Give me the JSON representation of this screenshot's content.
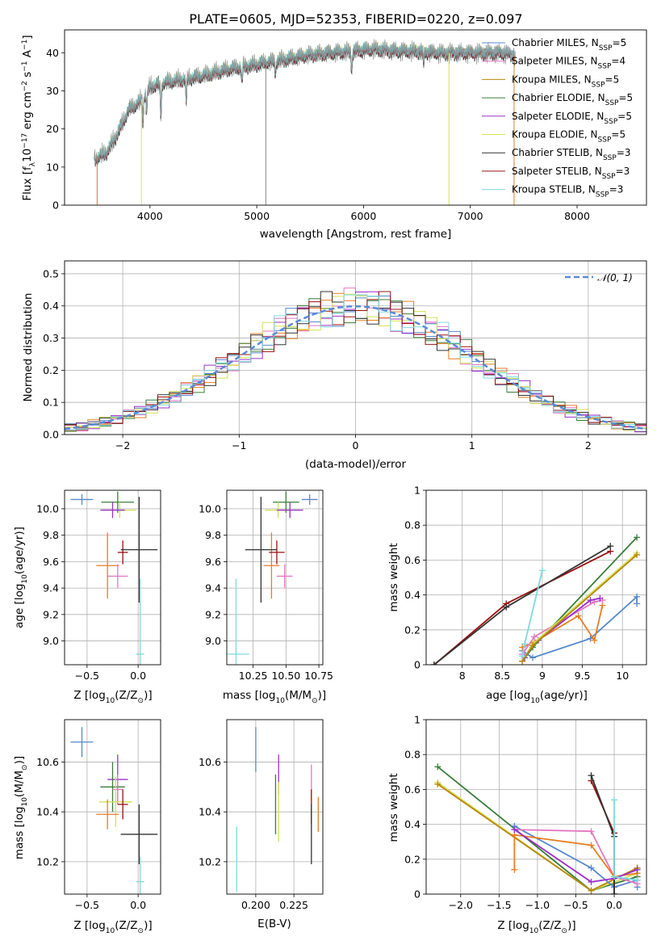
{
  "chart_data": [
    {
      "id": "spectrum",
      "type": "line",
      "title": "PLATE=0605, MJD=52353, FIBERID=0220, z=0.097",
      "xlabel": "wavelength [Angstrom, rest frame]",
      "ylabel": "Flux [f_λ10^-17 erg cm^-2 s^-1 A^-1]",
      "xlim": [
        3200,
        8650
      ],
      "ylim": [
        0,
        46
      ],
      "xticks": [
        4000,
        5000,
        6000,
        7000,
        8000
      ],
      "yticks": [
        0,
        10,
        20,
        30,
        40
      ],
      "continuum": {
        "x": [
          3480,
          3600,
          3700,
          3800,
          3900,
          4000,
          4100,
          4300,
          4500,
          4700,
          4900,
          5100,
          5300,
          5500,
          5700,
          5900,
          6100,
          6300,
          6500,
          6700,
          6900,
          7100,
          7300,
          7420
        ],
        "y": [
          12,
          14,
          19,
          25,
          27,
          31,
          32,
          33,
          34,
          35.5,
          36.5,
          37.5,
          38.5,
          39.5,
          40,
          40.5,
          41,
          40.5,
          40.5,
          40,
          40,
          40,
          40,
          39.5
        ]
      },
      "absorption_lines": [
        {
          "x": 3934,
          "depth": 6
        },
        {
          "x": 3969,
          "depth": 5
        },
        {
          "x": 4102,
          "depth": 8
        },
        {
          "x": 4340,
          "depth": 6
        },
        {
          "x": 4861,
          "depth": 4
        },
        {
          "x": 5175,
          "depth": 3
        },
        {
          "x": 5890,
          "depth": 5
        },
        {
          "x": 6563,
          "depth": 3
        }
      ],
      "series": [
        {
          "name": "Chabrier MILES, N_SSP=5",
          "color": "#5588cc"
        },
        {
          "name": "Salpeter MILES, N_SSP=4",
          "color": "#e377c2"
        },
        {
          "name": "Kroupa MILES, N_SSP=5",
          "color": "#b8860b"
        },
        {
          "name": "Chabrier ELODIE, N_SSP=5",
          "color": "#3a7d3a"
        },
        {
          "name": "Salpeter ELODIE, N_SSP=5",
          "color": "#9b30c8"
        },
        {
          "name": "Kroupa ELODIE, N_SSP=5",
          "color": "#d4e157"
        },
        {
          "name": "Chabrier STELIB, N_SSP=3",
          "color": "#333333"
        },
        {
          "name": "Salpeter STELIB, N_SSP=3",
          "color": "#9b1010"
        },
        {
          "name": "Kroupa STELIB, N_SSP=3",
          "color": "#7fd8e0"
        }
      ],
      "data_color": "#888888",
      "legend": [
        {
          "pre": "Chabrier MILES, N",
          "sub": "SSP",
          "post": "=5",
          "color": "#5588cc"
        },
        {
          "pre": "Salpeter MILES, N",
          "sub": "SSP",
          "post": "=4",
          "color": "#e377c2"
        },
        {
          "pre": "Kroupa MILES, N",
          "sub": "SSP",
          "post": "=5",
          "color": "#b8860b"
        },
        {
          "pre": "Chabrier ELODIE, N",
          "sub": "SSP",
          "post": "=5",
          "color": "#3a7d3a"
        },
        {
          "pre": "Salpeter ELODIE, N",
          "sub": "SSP",
          "post": "=5",
          "color": "#9b30c8"
        },
        {
          "pre": "Kroupa ELODIE, N",
          "sub": "SSP",
          "post": "=5",
          "color": "#d4e157"
        },
        {
          "pre": "Chabrier STELIB, N",
          "sub": "SSP",
          "post": "=3",
          "color": "#333333"
        },
        {
          "pre": "Salpeter STELIB, N",
          "sub": "SSP",
          "post": "=3",
          "color": "#9b1010"
        },
        {
          "pre": "Kroupa STELIB, N",
          "sub": "SSP",
          "post": "=3",
          "color": "#7fd8e0"
        }
      ]
    },
    {
      "id": "residuals",
      "type": "histogram",
      "xlabel": "(data-model)/error",
      "ylabel": "Normed distribution",
      "xlim": [
        -2.5,
        2.5
      ],
      "ylim": [
        0,
        0.54
      ],
      "xticks": [
        -2,
        -1,
        0,
        1,
        2
      ],
      "xtick_labels": [
        "−2",
        "−1",
        "0",
        "1",
        "2"
      ],
      "yticks": [
        0.0,
        0.1,
        0.2,
        0.3,
        0.4,
        0.5
      ],
      "ytick_labels": [
        "0.0",
        "0.1",
        "0.2",
        "0.3",
        "0.4",
        "0.5"
      ],
      "bin_width": 0.1,
      "legend_label": "𝒩(0, 1)",
      "gaussian_color": "#5b8ad6",
      "grid": true
    },
    {
      "id": "age_vs_Z",
      "type": "errorbar",
      "xlabel": "Z [log10(Z/Z⊙)]",
      "ylabel": "age  [log10(age/yr)]",
      "xlim": [
        -0.72,
        0.22
      ],
      "ylim": [
        8.82,
        10.14
      ],
      "xticks": [
        -0.5,
        0.0
      ],
      "xtick_labels": [
        "−0.5",
        "0.0"
      ],
      "yticks": [
        9.0,
        9.2,
        9.4,
        9.6,
        9.8,
        10.0
      ],
      "points": [
        {
          "x": -0.55,
          "xerr": 0.11,
          "y": 10.07,
          "yerr": 0.04,
          "color": "#5588cc"
        },
        {
          "x": -0.2,
          "xerr": 0.16,
          "y": 10.05,
          "yerr": 0.08,
          "color": "#3a7d3a"
        },
        {
          "x": -0.18,
          "xerr": 0.16,
          "y": 9.99,
          "yerr": 0.06,
          "color": "#d4e157"
        },
        {
          "x": -0.25,
          "xerr": 0.12,
          "y": 9.99,
          "yerr": 0.06,
          "color": "#9b30c8"
        },
        {
          "x": -0.3,
          "xerr": 0.11,
          "y": 9.57,
          "yerr": 0.25,
          "color": "#e67e22"
        },
        {
          "x": -0.2,
          "xerr": 0.1,
          "y": 9.49,
          "yerr": 0.09,
          "color": "#e377c2"
        },
        {
          "x": -0.15,
          "xerr": 0.05,
          "y": 9.67,
          "yerr": 0.09,
          "color": "#9b1010"
        },
        {
          "x": 0.01,
          "xerr": 0.18,
          "y": 9.69,
          "yerr": 0.4,
          "color": "#333333"
        },
        {
          "x": 0.02,
          "xerr": 0.04,
          "y": 8.9,
          "yerr": 0.57,
          "color": "#7fd8e0"
        }
      ]
    },
    {
      "id": "age_vs_mass",
      "type": "errorbar",
      "xlabel": "mass [log10(M/M⊙)]",
      "xlim": [
        10.05,
        10.78
      ],
      "ylim": [
        8.82,
        10.14
      ],
      "xticks": [
        10.25,
        10.5,
        10.75
      ],
      "xtick_labels": [
        "10.25",
        "10.50",
        "10.75"
      ],
      "yticks": [
        9.0,
        9.2,
        9.4,
        9.6,
        9.8,
        10.0
      ],
      "points": [
        {
          "x": 10.68,
          "xerr": 0.06,
          "y": 10.07,
          "yerr": 0.04,
          "color": "#5588cc"
        },
        {
          "x": 10.5,
          "xerr": 0.1,
          "y": 10.05,
          "yerr": 0.08,
          "color": "#3a7d3a"
        },
        {
          "x": 10.44,
          "xerr": 0.1,
          "y": 9.99,
          "yerr": 0.06,
          "color": "#d4e157"
        },
        {
          "x": 10.53,
          "xerr": 0.1,
          "y": 9.99,
          "yerr": 0.06,
          "color": "#9b30c8"
        },
        {
          "x": 10.39,
          "xerr": 0.06,
          "y": 9.57,
          "yerr": 0.25,
          "color": "#e67e22"
        },
        {
          "x": 10.49,
          "xerr": 0.06,
          "y": 9.49,
          "yerr": 0.09,
          "color": "#e377c2"
        },
        {
          "x": 10.43,
          "xerr": 0.06,
          "y": 9.67,
          "yerr": 0.09,
          "color": "#9b1010"
        },
        {
          "x": 10.31,
          "xerr": 0.12,
          "y": 9.69,
          "yerr": 0.4,
          "color": "#333333"
        },
        {
          "x": 10.12,
          "xerr": 0.1,
          "y": 8.9,
          "yerr": 0.57,
          "color": "#7fd8e0"
        }
      ]
    },
    {
      "id": "mass_weight_vs_age",
      "type": "line",
      "xlabel": "age  [log10(age/yr)]",
      "ylabel": "mass weight",
      "xlim": [
        7.55,
        10.3
      ],
      "ylim": [
        0.0,
        1.0
      ],
      "xticks": [
        8.0,
        8.5,
        9.0,
        9.5,
        10.0
      ],
      "yticks": [
        0.0,
        0.2,
        0.4,
        0.6,
        0.8,
        1.0
      ],
      "series": [
        {
          "color": "#5588cc",
          "x": [
            8.75,
            8.88,
            9.6,
            10.18,
            10.18
          ],
          "y": [
            0.08,
            0.04,
            0.15,
            0.39,
            0.35
          ]
        },
        {
          "color": "#e67e22",
          "x": [
            8.75,
            8.9,
            9.45,
            9.65,
            9.75
          ],
          "y": [
            0.1,
            0.13,
            0.28,
            0.14,
            0.34
          ]
        },
        {
          "color": "#e377c2",
          "x": [
            8.75,
            8.9,
            9.65,
            9.75
          ],
          "y": [
            0.06,
            0.16,
            0.36,
            0.37
          ]
        },
        {
          "color": "#9b30c8",
          "x": [
            8.78,
            8.95,
            9.6,
            9.72
          ],
          "y": [
            0.04,
            0.14,
            0.37,
            0.38
          ]
        },
        {
          "color": "#3a7d3a",
          "x": [
            8.75,
            8.88,
            10.18
          ],
          "y": [
            0.02,
            0.1,
            0.73
          ]
        },
        {
          "color": "#d4e157",
          "x": [
            8.75,
            8.88,
            10.18
          ],
          "y": [
            0.02,
            0.12,
            0.64
          ]
        },
        {
          "color": "#b8860b",
          "x": [
            8.75,
            8.88,
            10.18
          ],
          "y": [
            0.02,
            0.11,
            0.63
          ]
        },
        {
          "color": "#9b1010",
          "x": [
            7.65,
            8.55,
            9.85
          ],
          "y": [
            0.0,
            0.35,
            0.65
          ]
        },
        {
          "color": "#333333",
          "x": [
            7.65,
            8.55,
            9.85
          ],
          "y": [
            0.0,
            0.33,
            0.68
          ]
        },
        {
          "color": "#7fd8e0",
          "x": [
            8.75,
            8.78,
            9.0
          ],
          "y": [
            0.05,
            0.12,
            0.54
          ]
        }
      ]
    },
    {
      "id": "mass_vs_Z",
      "type": "errorbar",
      "xlabel": "Z [log10(Z/Z⊙)]",
      "ylabel": "mass [log10(M/M⊙)]",
      "xlim": [
        -0.72,
        0.22
      ],
      "ylim": [
        10.07,
        10.77
      ],
      "xticks": [
        -0.5,
        0.0
      ],
      "xtick_labels": [
        "−0.5",
        "0.0"
      ],
      "yticks": [
        10.2,
        10.4,
        10.6
      ],
      "points": [
        {
          "x": -0.55,
          "xerr": 0.11,
          "y": 10.68,
          "yerr": 0.06,
          "color": "#5588cc"
        },
        {
          "x": -0.2,
          "xerr": 0.1,
          "y": 10.53,
          "yerr": 0.1,
          "color": "#9b30c8"
        },
        {
          "x": -0.25,
          "xerr": 0.12,
          "y": 10.5,
          "yerr": 0.1,
          "color": "#3a7d3a"
        },
        {
          "x": -0.2,
          "xerr": 0.05,
          "y": 10.49,
          "yerr": 0.06,
          "color": "#e377c2"
        },
        {
          "x": -0.22,
          "xerr": 0.16,
          "y": 10.44,
          "yerr": 0.1,
          "color": "#d4e157"
        },
        {
          "x": -0.15,
          "xerr": 0.05,
          "y": 10.43,
          "yerr": 0.06,
          "color": "#9b1010"
        },
        {
          "x": -0.3,
          "xerr": 0.11,
          "y": 10.39,
          "yerr": 0.06,
          "color": "#e67e22"
        },
        {
          "x": 0.01,
          "xerr": 0.18,
          "y": 10.31,
          "yerr": 0.12,
          "color": "#333333"
        },
        {
          "x": 0.02,
          "xerr": 0.04,
          "y": 10.12,
          "yerr": 0.1,
          "color": "#7fd8e0"
        }
      ]
    },
    {
      "id": "mass_vs_EBV",
      "type": "errorbar",
      "xlabel": "E(B-V)",
      "xlim": [
        0.181,
        0.244
      ],
      "ylim": [
        10.07,
        10.77
      ],
      "xticks": [
        0.2,
        0.225
      ],
      "xtick_labels": [
        "0.200",
        "0.225"
      ],
      "yticks": [
        10.2,
        10.4,
        10.6
      ],
      "points": [
        {
          "x": 0.1875,
          "y": 10.21,
          "yerr": 0.13,
          "color": "#7fd8e0"
        },
        {
          "x": 0.2,
          "y": 10.65,
          "yerr": 0.09,
          "color": "#5588cc"
        },
        {
          "x": 0.213,
          "y": 10.43,
          "yerr": 0.12,
          "color": "#3a7d3a"
        },
        {
          "x": 0.215,
          "y": 10.55,
          "yerr": 0.08,
          "color": "#9b30c8"
        },
        {
          "x": 0.215,
          "y": 10.4,
          "yerr": 0.12,
          "color": "#d4e157"
        },
        {
          "x": 0.2365,
          "y": 10.52,
          "yerr": 0.07,
          "color": "#e377c2"
        },
        {
          "x": 0.2365,
          "y": 10.42,
          "yerr": 0.07,
          "color": "#9b1010"
        },
        {
          "x": 0.2365,
          "y": 10.31,
          "yerr": 0.12,
          "color": "#333333"
        },
        {
          "x": 0.241,
          "y": 10.39,
          "yerr": 0.07,
          "color": "#e67e22"
        }
      ]
    },
    {
      "id": "mass_weight_vs_Z",
      "type": "line",
      "xlabel": "Z [log10(Z/Z⊙)]",
      "ylabel": "mass weight",
      "xlim": [
        -2.45,
        0.42
      ],
      "ylim": [
        0.0,
        1.0
      ],
      "xticks": [
        -2.0,
        -1.5,
        -1.0,
        -0.5,
        0.0
      ],
      "xtick_labels": [
        "−2.0",
        "−1.5",
        "−1.0",
        "−0.5",
        "0.0"
      ],
      "yticks": [
        0.0,
        0.2,
        0.4,
        0.6,
        0.8,
        1.0
      ],
      "series": [
        {
          "color": "#3a7d3a",
          "x": [
            -2.3,
            -0.3,
            0.3,
            0.3
          ],
          "y": [
            0.73,
            0.02,
            0.1,
            0.15
          ]
        },
        {
          "color": "#d4e157",
          "x": [
            -2.3,
            -0.3,
            0.3
          ],
          "y": [
            0.64,
            0.02,
            0.12
          ]
        },
        {
          "color": "#b8860b",
          "x": [
            -2.3,
            -0.3,
            0.3
          ],
          "y": [
            0.63,
            0.02,
            0.15
          ]
        },
        {
          "color": "#5588cc",
          "x": [
            -1.3,
            -0.3,
            0.0,
            0.3,
            0.3
          ],
          "y": [
            0.39,
            0.15,
            0.04,
            0.08,
            0.04
          ]
        },
        {
          "color": "#e377c2",
          "x": [
            -1.3,
            -0.3,
            0.0,
            0.3
          ],
          "y": [
            0.37,
            0.36,
            0.1,
            0.06
          ]
        },
        {
          "color": "#e67e22",
          "x": [
            -1.3,
            -1.3,
            -0.3,
            0.0,
            0.3
          ],
          "y": [
            0.14,
            0.34,
            0.28,
            0.1,
            0.12
          ]
        },
        {
          "color": "#9b30c8",
          "x": [
            -1.3,
            -0.3,
            0.0,
            0.3
          ],
          "y": [
            0.37,
            0.07,
            0.09,
            0.14
          ]
        },
        {
          "color": "#9b1010",
          "x": [
            -0.3,
            0.0,
            0.0
          ],
          "y": [
            0.65,
            0.35,
            0.0
          ]
        },
        {
          "color": "#333333",
          "x": [
            -0.3,
            0.0,
            0.0
          ],
          "y": [
            0.68,
            0.33,
            0.0
          ]
        },
        {
          "color": "#7fd8e0",
          "x": [
            0.0,
            0.0,
            0.3
          ],
          "y": [
            0.54,
            0.1,
            0.08
          ]
        }
      ]
    }
  ]
}
